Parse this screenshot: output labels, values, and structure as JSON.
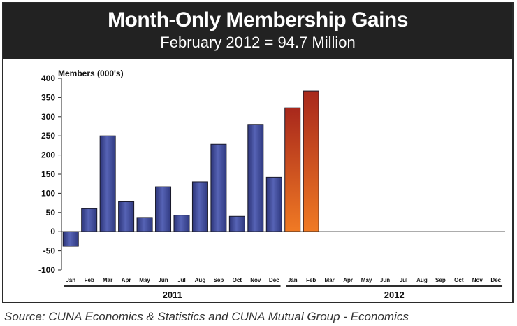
{
  "chart_data": {
    "type": "bar",
    "title": "Month-Only Membership Gains",
    "subtitle": "February 2012 = 94.7 Million",
    "ylabel": "Members (000's)",
    "xlabel": "",
    "ylim": [
      -100,
      400
    ],
    "yticks": [
      400,
      350,
      300,
      250,
      200,
      150,
      100,
      50,
      0,
      -50,
      -100
    ],
    "months": [
      "Jan",
      "Feb",
      "Mar",
      "Apr",
      "May",
      "Jun",
      "Jul",
      "Aug",
      "Sep",
      "Oct",
      "Nov",
      "Dec",
      "Jan",
      "Feb",
      "Mar",
      "Apr",
      "May",
      "Jun",
      "Jul",
      "Aug",
      "Sep",
      "Oct",
      "Nov",
      "Dec"
    ],
    "years": [
      {
        "label": "2011",
        "start": 0,
        "end": 11
      },
      {
        "label": "2012",
        "start": 12,
        "end": 23
      }
    ],
    "series": [
      {
        "name": "2011",
        "color": "#3f4a9a",
        "start": 0,
        "values": [
          -38,
          60,
          250,
          78,
          37,
          117,
          43,
          130,
          228,
          40,
          280,
          142
        ]
      },
      {
        "name": "2012",
        "color": "#d8501c",
        "start": 12,
        "values": [
          323,
          367
        ]
      }
    ],
    "source": "Source: CUNA Economics & Statistics and CUNA Mutual Group - Economics"
  }
}
